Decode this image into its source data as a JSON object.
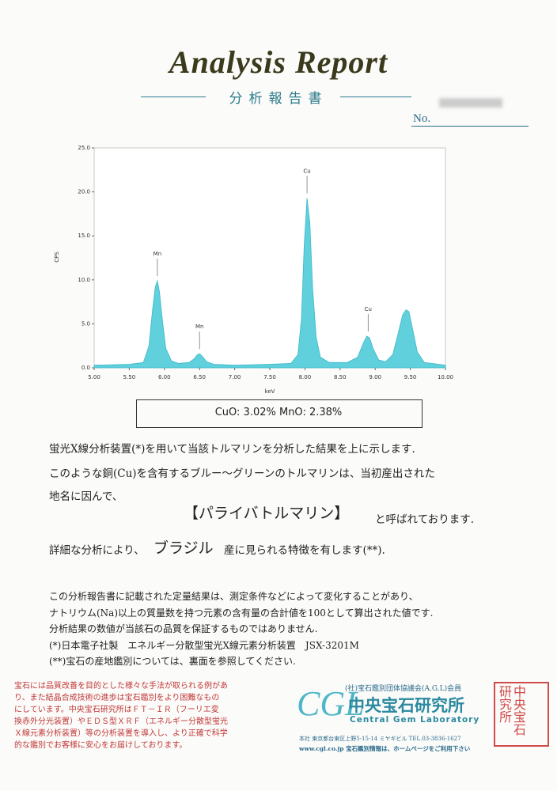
{
  "header": {
    "title": "Analysis Report",
    "subtitle": "分析報告書",
    "number_label": "No."
  },
  "chart_data": {
    "type": "area",
    "xlabel": "keV",
    "ylabel": "CPS",
    "x": [
      5.0,
      5.5,
      5.7,
      5.78,
      5.83,
      5.87,
      5.9,
      5.93,
      5.97,
      6.02,
      6.1,
      6.2,
      6.35,
      6.42,
      6.47,
      6.5,
      6.54,
      6.6,
      6.7,
      7.0,
      7.5,
      7.8,
      7.9,
      7.95,
      7.99,
      8.03,
      8.07,
      8.11,
      8.16,
      8.22,
      8.35,
      8.6,
      8.75,
      8.83,
      8.88,
      8.92,
      8.97,
      9.05,
      9.15,
      9.25,
      9.33,
      9.39,
      9.44,
      9.48,
      9.53,
      9.6,
      9.7,
      10.0
    ],
    "values": [
      0.3,
      0.4,
      0.6,
      2.5,
      6.5,
      9.2,
      9.9,
      8.6,
      5.5,
      2.2,
      0.8,
      0.5,
      0.6,
      1.0,
      1.5,
      1.6,
      1.3,
      0.7,
      0.4,
      0.3,
      0.4,
      0.5,
      1.5,
      5.5,
      14.0,
      19.3,
      16.5,
      9.0,
      3.5,
      1.2,
      0.6,
      0.6,
      1.2,
      2.8,
      3.6,
      3.4,
      2.2,
      0.9,
      0.7,
      1.5,
      4.0,
      6.0,
      6.6,
      6.4,
      4.5,
      1.8,
      0.6,
      0.3
    ],
    "color": "#5fd0dc",
    "xlim": [
      5,
      10
    ],
    "xticks": [
      {
        "value": 5,
        "label": "5.00"
      },
      {
        "value": 5.5,
        "label": "5.50"
      },
      {
        "value": 6,
        "label": "6.00"
      },
      {
        "value": 6.5,
        "label": "6.50"
      },
      {
        "value": 7,
        "label": "7.00"
      },
      {
        "value": 7.5,
        "label": "7.50"
      },
      {
        "value": 8,
        "label": "8.00"
      },
      {
        "value": 8.5,
        "label": "8.50"
      },
      {
        "value": 9,
        "label": "9.00"
      },
      {
        "value": 9.5,
        "label": "9.50"
      },
      {
        "value": 10,
        "label": "10.00"
      }
    ],
    "ylim": [
      0,
      25
    ],
    "yticks": [
      {
        "value": 0,
        "label": "0.0"
      },
      {
        "value": 5,
        "label": "5.0"
      },
      {
        "value": 10,
        "label": "10.0"
      },
      {
        "value": 15,
        "label": "15.0"
      },
      {
        "value": 20,
        "label": "20.0"
      },
      {
        "value": 25,
        "label": "25.0"
      }
    ],
    "annotations": [
      {
        "text": "Mn",
        "x": 5.9,
        "y": 9.9
      },
      {
        "text": "Mn",
        "x": 6.5,
        "y": 1.6
      },
      {
        "text": "Cu",
        "x": 8.03,
        "y": 19.3
      },
      {
        "text": "Cu",
        "x": 8.9,
        "y": 3.6
      }
    ]
  },
  "result": "CuO: 3.02%   MnO: 2.38%",
  "body": {
    "line1": "蛍光X線分析装置(*)を用いて当該トルマリンを分析した結果を上に示します.",
    "line2": "このような銅(Cu)を含有するブルー～グリーンのトルマリンは、当初産出された",
    "line3": "地名に因んで、",
    "name": "【パライバトルマリン】",
    "line4": "と呼ばれております.",
    "line5a": "詳細な分析により、",
    "origin": "ブラジル",
    "line5b": "産に見られる特徴を有します(**)."
  },
  "notes": [
    "この分析報告書に記載された定量結果は、測定条件などによって変化することがあり、",
    "ナトリウム(Na)以上の質量数を持つ元素の含有量の合計値を100として算出された値です.",
    "分析結果の数値が当該石の品質を保証するものではありません.",
    "(*)日本電子社製　エネルギー分散型蛍光X線元素分析装置　JSX-3201M",
    "(**)宝石の産地鑑別については、裏面を参照してください."
  ],
  "footer": {
    "notice": [
      "宝石には品質改善を目的とした様々な手法が取られる例があ",
      "り、また結晶合成技術の進歩は宝石鑑別をより困難なもの",
      "にしています。中央宝石研究所はＦＴ－ＩＲ（フーリエ変",
      "換赤外分光装置）やＥＤＳ型ＸＲＦ（エネルギー分散型蛍光",
      "Ｘ線元素分析装置）等の分析装置を導入し、より正確で科学",
      "的な鑑別でお客様に安心をお届けしております。"
    ],
    "membership": "(社)宝石鑑別団体協議会(A.G.L)会員",
    "logo": "CGL",
    "company": "中央宝石研究所",
    "company_en": "Central Gem Laboratory",
    "address": "本社 東京都台東区上野5-15-14 ミヤギビル TEL.03-3836-1627",
    "web": "www.cgl.co.jp 宝石鑑別情報は、ホームページをご利用下さい",
    "seal": "中央宝石研究所"
  }
}
